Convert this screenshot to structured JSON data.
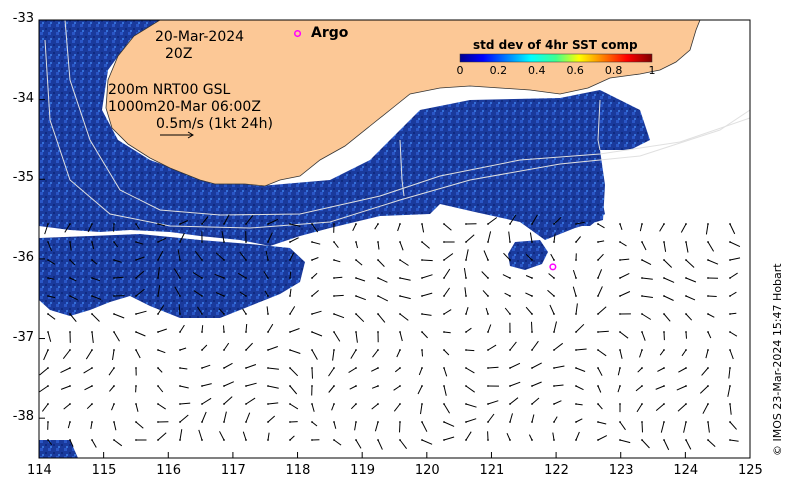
{
  "map": {
    "lon_range": [
      114,
      125
    ],
    "lat_range": [
      -38.5,
      -33
    ],
    "lon_ticks": [
      "114",
      "115",
      "116",
      "117",
      "118",
      "119",
      "120",
      "121",
      "122",
      "123",
      "124",
      "125"
    ],
    "lat_ticks": [
      "-33",
      "-34",
      "-35",
      "-36",
      "-37",
      "-38"
    ],
    "colors": {
      "land": "#fcc896",
      "ocean_data": "#1e3ca0",
      "background": "#ffffff",
      "argo": "#ff00ff"
    }
  },
  "annotations": {
    "date": "20-Mar-2024",
    "time": "20Z",
    "contour_line1": "200m  NRT00 GSL",
    "contour_line2": "1000m20-Mar 06:00Z",
    "scale_label": "0.5m/s (1kt 24h)"
  },
  "argo": {
    "label": "Argo",
    "floats": [
      {
        "lon": 118.0,
        "lat": -33.17
      },
      {
        "lon": 121.95,
        "lat": -36.1
      }
    ]
  },
  "colorbar": {
    "title": "std dev of 4hr SST comp",
    "range": [
      0,
      1
    ],
    "ticks": [
      "0",
      "0.2",
      "0.4",
      "0.6",
      "0.8",
      "1"
    ]
  },
  "copyright": "© IMOS 23-Mar-2024 15:47 Hobart"
}
